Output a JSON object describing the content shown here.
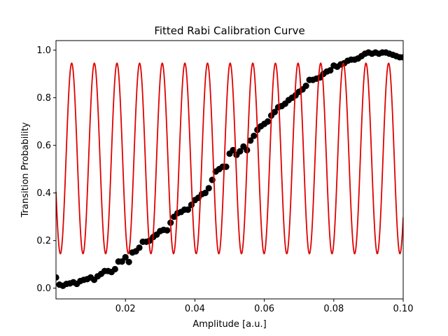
{
  "chart_data": {
    "type": "scatter",
    "title": "Fitted Rabi Calibration Curve",
    "xlabel": "Amplitude [a.u.]",
    "ylabel": "Transition Probability",
    "xlim": [
      0.0,
      0.1
    ],
    "ylim": [
      -0.045,
      1.04
    ],
    "xticks": [
      0.02,
      0.04,
      0.06,
      0.08,
      0.1
    ],
    "xtick_labels": [
      "0.02",
      "0.04",
      "0.06",
      "0.08",
      "0.10"
    ],
    "yticks": [
      0.0,
      0.2,
      0.4,
      0.6,
      0.8,
      1.0
    ],
    "ytick_labels": [
      "0.0",
      "0.2",
      "0.4",
      "0.6",
      "0.8",
      "1.0"
    ],
    "grid": false,
    "colors": {
      "data": "#000000",
      "fit": "#e00000"
    },
    "data_points": {
      "x": [
        0.0,
        0.001,
        0.002,
        0.003,
        0.004,
        0.005,
        0.006,
        0.007,
        0.008,
        0.009,
        0.01,
        0.011,
        0.012,
        0.013,
        0.014,
        0.015,
        0.016,
        0.017,
        0.018,
        0.019,
        0.02,
        0.021,
        0.022,
        0.023,
        0.024,
        0.025,
        0.026,
        0.027,
        0.028,
        0.029,
        0.03,
        0.031,
        0.032,
        0.033,
        0.034,
        0.035,
        0.036,
        0.037,
        0.038,
        0.039,
        0.04,
        0.041,
        0.042,
        0.043,
        0.044,
        0.045,
        0.046,
        0.047,
        0.048,
        0.049,
        0.05,
        0.051,
        0.052,
        0.053,
        0.054,
        0.055,
        0.056,
        0.057,
        0.058,
        0.059,
        0.06,
        0.061,
        0.062,
        0.063,
        0.064,
        0.065,
        0.066,
        0.067,
        0.068,
        0.069,
        0.07,
        0.071,
        0.072,
        0.073,
        0.074,
        0.075,
        0.076,
        0.077,
        0.078,
        0.079,
        0.08,
        0.081,
        0.082,
        0.083,
        0.084,
        0.085,
        0.086,
        0.087,
        0.088,
        0.089,
        0.09,
        0.091,
        0.092,
        0.093,
        0.094,
        0.095,
        0.096,
        0.097,
        0.098,
        0.099,
        0.1
      ],
      "y": [
        0.045,
        0.015,
        0.01,
        0.018,
        0.02,
        0.025,
        0.018,
        0.03,
        0.035,
        0.038,
        0.045,
        0.035,
        0.05,
        0.06,
        0.072,
        0.072,
        0.068,
        0.08,
        0.112,
        0.112,
        0.13,
        0.11,
        0.15,
        0.155,
        0.17,
        0.195,
        0.195,
        0.2,
        0.215,
        0.225,
        0.24,
        0.245,
        0.243,
        0.275,
        0.3,
        0.315,
        0.32,
        0.33,
        0.33,
        0.35,
        0.37,
        0.38,
        0.395,
        0.4,
        0.42,
        0.455,
        0.49,
        0.5,
        0.51,
        0.51,
        0.565,
        0.58,
        0.56,
        0.575,
        0.595,
        0.58,
        0.62,
        0.64,
        0.665,
        0.68,
        0.69,
        0.7,
        0.725,
        0.74,
        0.76,
        0.765,
        0.775,
        0.79,
        0.8,
        0.81,
        0.825,
        0.835,
        0.85,
        0.875,
        0.875,
        0.88,
        0.885,
        0.9,
        0.91,
        0.915,
        0.935,
        0.93,
        0.94,
        0.945,
        0.955,
        0.96,
        0.96,
        0.965,
        0.975,
        0.985,
        0.99,
        0.985,
        0.99,
        0.985,
        0.99,
        0.99,
        0.985,
        0.98,
        0.975,
        0.97,
        0.97
      ]
    },
    "fit_curve": {
      "model": "offset + amplitude * sin^2(pi * x / period + phase)",
      "offset": 0.145,
      "amplitude": 0.8,
      "period": 0.00652,
      "peak_x": 0.00452
    }
  }
}
